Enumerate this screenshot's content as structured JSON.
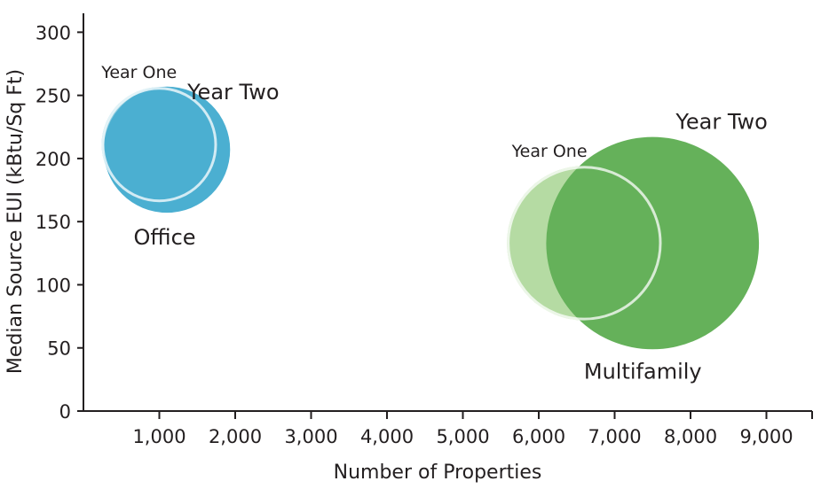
{
  "chart_data": {
    "type": "bubble",
    "xlabel": "Number of Properties",
    "ylabel": "Median Source EUI (kBtu/Sq Ft)",
    "xlim": [
      0,
      9400
    ],
    "ylim": [
      0,
      310
    ],
    "x_ticks": [
      1000,
      2000,
      3000,
      4000,
      5000,
      6000,
      7000,
      8000,
      9000
    ],
    "x_tick_labels": [
      "1,000",
      "2,000",
      "3,000",
      "4,000",
      "5,000",
      "6,000",
      "7,000",
      "8,000",
      "9,000"
    ],
    "y_ticks": [
      0,
      50,
      100,
      150,
      200,
      250,
      300
    ],
    "y_tick_labels": [
      "0",
      "50",
      "100",
      "150",
      "200",
      "250",
      "300"
    ],
    "grid": false,
    "groups": [
      {
        "name": "Office",
        "bubbles": [
          {
            "label": "Year One",
            "x": 1000,
            "y": 211,
            "size": 1,
            "color": "#8fcde0"
          },
          {
            "label": "Year Two",
            "x": 1100,
            "y": 207,
            "size": 1.2,
            "color": "#4bafd1"
          }
        ]
      },
      {
        "name": "Multifamily",
        "bubbles": [
          {
            "label": "Year One",
            "x": 6600,
            "y": 133,
            "size": 1.8,
            "color": "#b5dba3"
          },
          {
            "label": "Year Two",
            "x": 7500,
            "y": 133,
            "size": 3.4,
            "color": "#65b15a"
          }
        ]
      }
    ]
  }
}
